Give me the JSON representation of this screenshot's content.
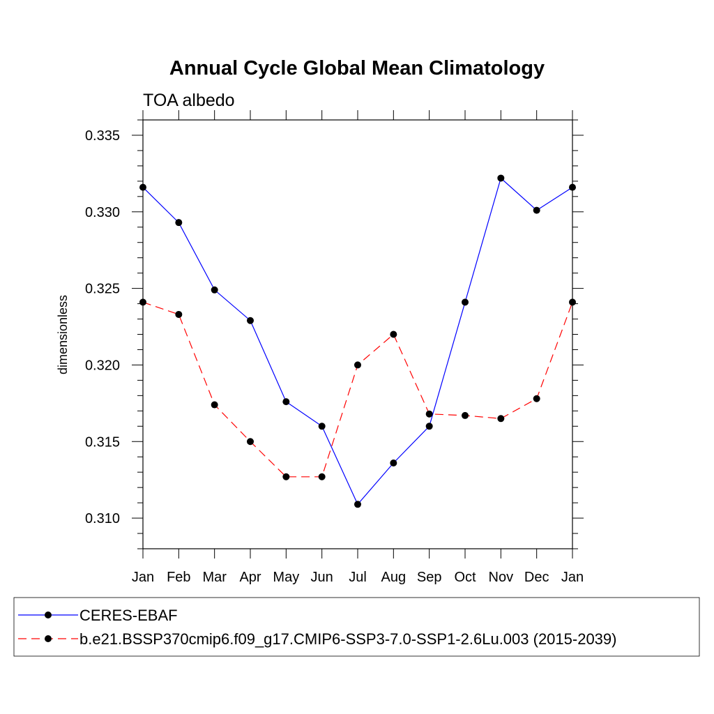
{
  "chart_data": {
    "type": "line",
    "title": "Annual Cycle Global Mean Climatology",
    "subtitle": "TOA albedo",
    "xlabel": "",
    "ylabel": "dimensionless",
    "categories": [
      "Jan",
      "Feb",
      "Mar",
      "Apr",
      "May",
      "Jun",
      "Jul",
      "Aug",
      "Sep",
      "Oct",
      "Nov",
      "Dec",
      "Jan"
    ],
    "ylim": [
      0.308,
      0.336
    ],
    "yticks": [
      "0.310",
      "0.315",
      "0.320",
      "0.325",
      "0.330",
      "0.335"
    ],
    "grid": false,
    "legend_position": "bottom",
    "series": [
      {
        "name": "CERES-EBAF",
        "color": "#0000ff",
        "line_style": "solid",
        "values": [
          0.3316,
          0.3293,
          0.3249,
          0.3229,
          0.3176,
          0.316,
          0.3109,
          0.3136,
          0.316,
          0.3241,
          0.3322,
          0.3301,
          0.3316
        ]
      },
      {
        "name": "b.e21.BSSP370cmip6.f09_g17.CMIP6-SSP3-7.0-SSP1-2.6Lu.003 (2015-2039)",
        "color": "#ff0000",
        "line_style": "dashed",
        "values": [
          0.3241,
          0.3233,
          0.3174,
          0.315,
          0.3127,
          0.3127,
          0.32,
          0.322,
          0.3168,
          0.3167,
          0.3165,
          0.3178,
          0.3241
        ]
      }
    ]
  }
}
